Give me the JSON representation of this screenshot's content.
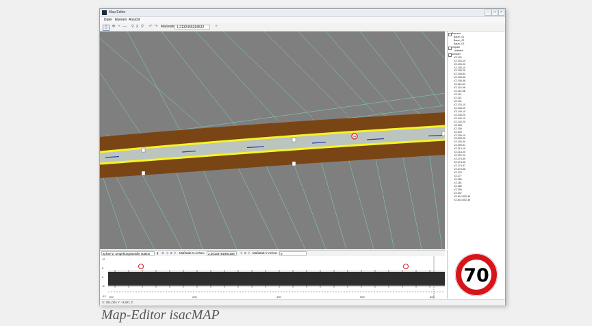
{
  "window": {
    "title": "Map-Editor",
    "controls": {
      "minimize": "–",
      "maximize": "□",
      "close": "×"
    }
  },
  "menu": {
    "items": [
      "Datei",
      "Ebenen",
      "Ansicht"
    ]
  },
  "toolbar": {
    "zoom_value": "2",
    "scale_label": "Maßstab:",
    "scale_value": "1,2132455318532"
  },
  "tree": {
    "groups": [
      {
        "label": "Baeume",
        "children": [
          "Baum_01",
          "Baum_02",
          "Baum_03"
        ]
      },
      {
        "label": "Objekte",
        "children": [
          "Leitbake"
        ]
      },
      {
        "label": "Schilder",
        "children": [
          "VZ-102",
          "VZ-103-10",
          "VZ-103-20",
          "VZ-105-10",
          "VZ-105-20",
          "VZ-108-84",
          "VZ-108-86",
          "VZ-108-58",
          "VZ-110-54",
          "VZ-110-56",
          "VZ-110-58",
          "VZ-112",
          "VZ-114",
          "VZ-131",
          "VZ-133-10",
          "VZ-133-20",
          "VZ-140-10",
          "VZ-140-20",
          "VZ-142-10",
          "VZ-142-20",
          "VZ-205",
          "VZ-206",
          "VZ-209",
          "VZ-209-10",
          "VZ-209-20",
          "VZ-209-30",
          "VZ-209-31",
          "VZ-214-10",
          "VZ-214-20",
          "VZ-222-20",
          "VZ-274-55",
          "VZ-274-56",
          "VZ-274-57",
          "VZ-274-58",
          "VZ-276",
          "VZ-277",
          "VZ-280",
          "VZ-281",
          "VZ-282",
          "VZ-306",
          "VZ-307",
          "VZ-60-1052-36",
          "VZ-60-1052-38"
        ]
      }
    ]
  },
  "lower_toolbar": {
    "axis_select": "achse-2: umgehungsstraße station als",
    "zoom_value": "2",
    "scale_x_label": "Maßstab X-Achse:",
    "scale_x_value": "2,20150751984106",
    "zoom_value_2": "2",
    "scale_y_label": "Maßstab Y-Achse:",
    "scale_y_value": "0"
  },
  "profile": {
    "y_ticks": [
      "12",
      "6",
      "0",
      "-6",
      "-12"
    ],
    "x_ticks": [
      "100",
      "200",
      "400",
      "500",
      "600"
    ],
    "sign_marker": "70"
  },
  "sign_panel": {
    "speed_value": "70"
  },
  "statusbar": {
    "text": "X: 351,004  Y: -9,821  Z:"
  },
  "caption": "Map-Editor isacMAP",
  "colors": {
    "map_bg": "#7f7f7f",
    "road_surface": "#bcc4bf",
    "road_edge": "#f5f524",
    "shoulder": "#7a4514",
    "mesh_lines": "#7fe8b6",
    "lane_marks": "#2b3fb0",
    "sign_red": "#d7141a"
  }
}
